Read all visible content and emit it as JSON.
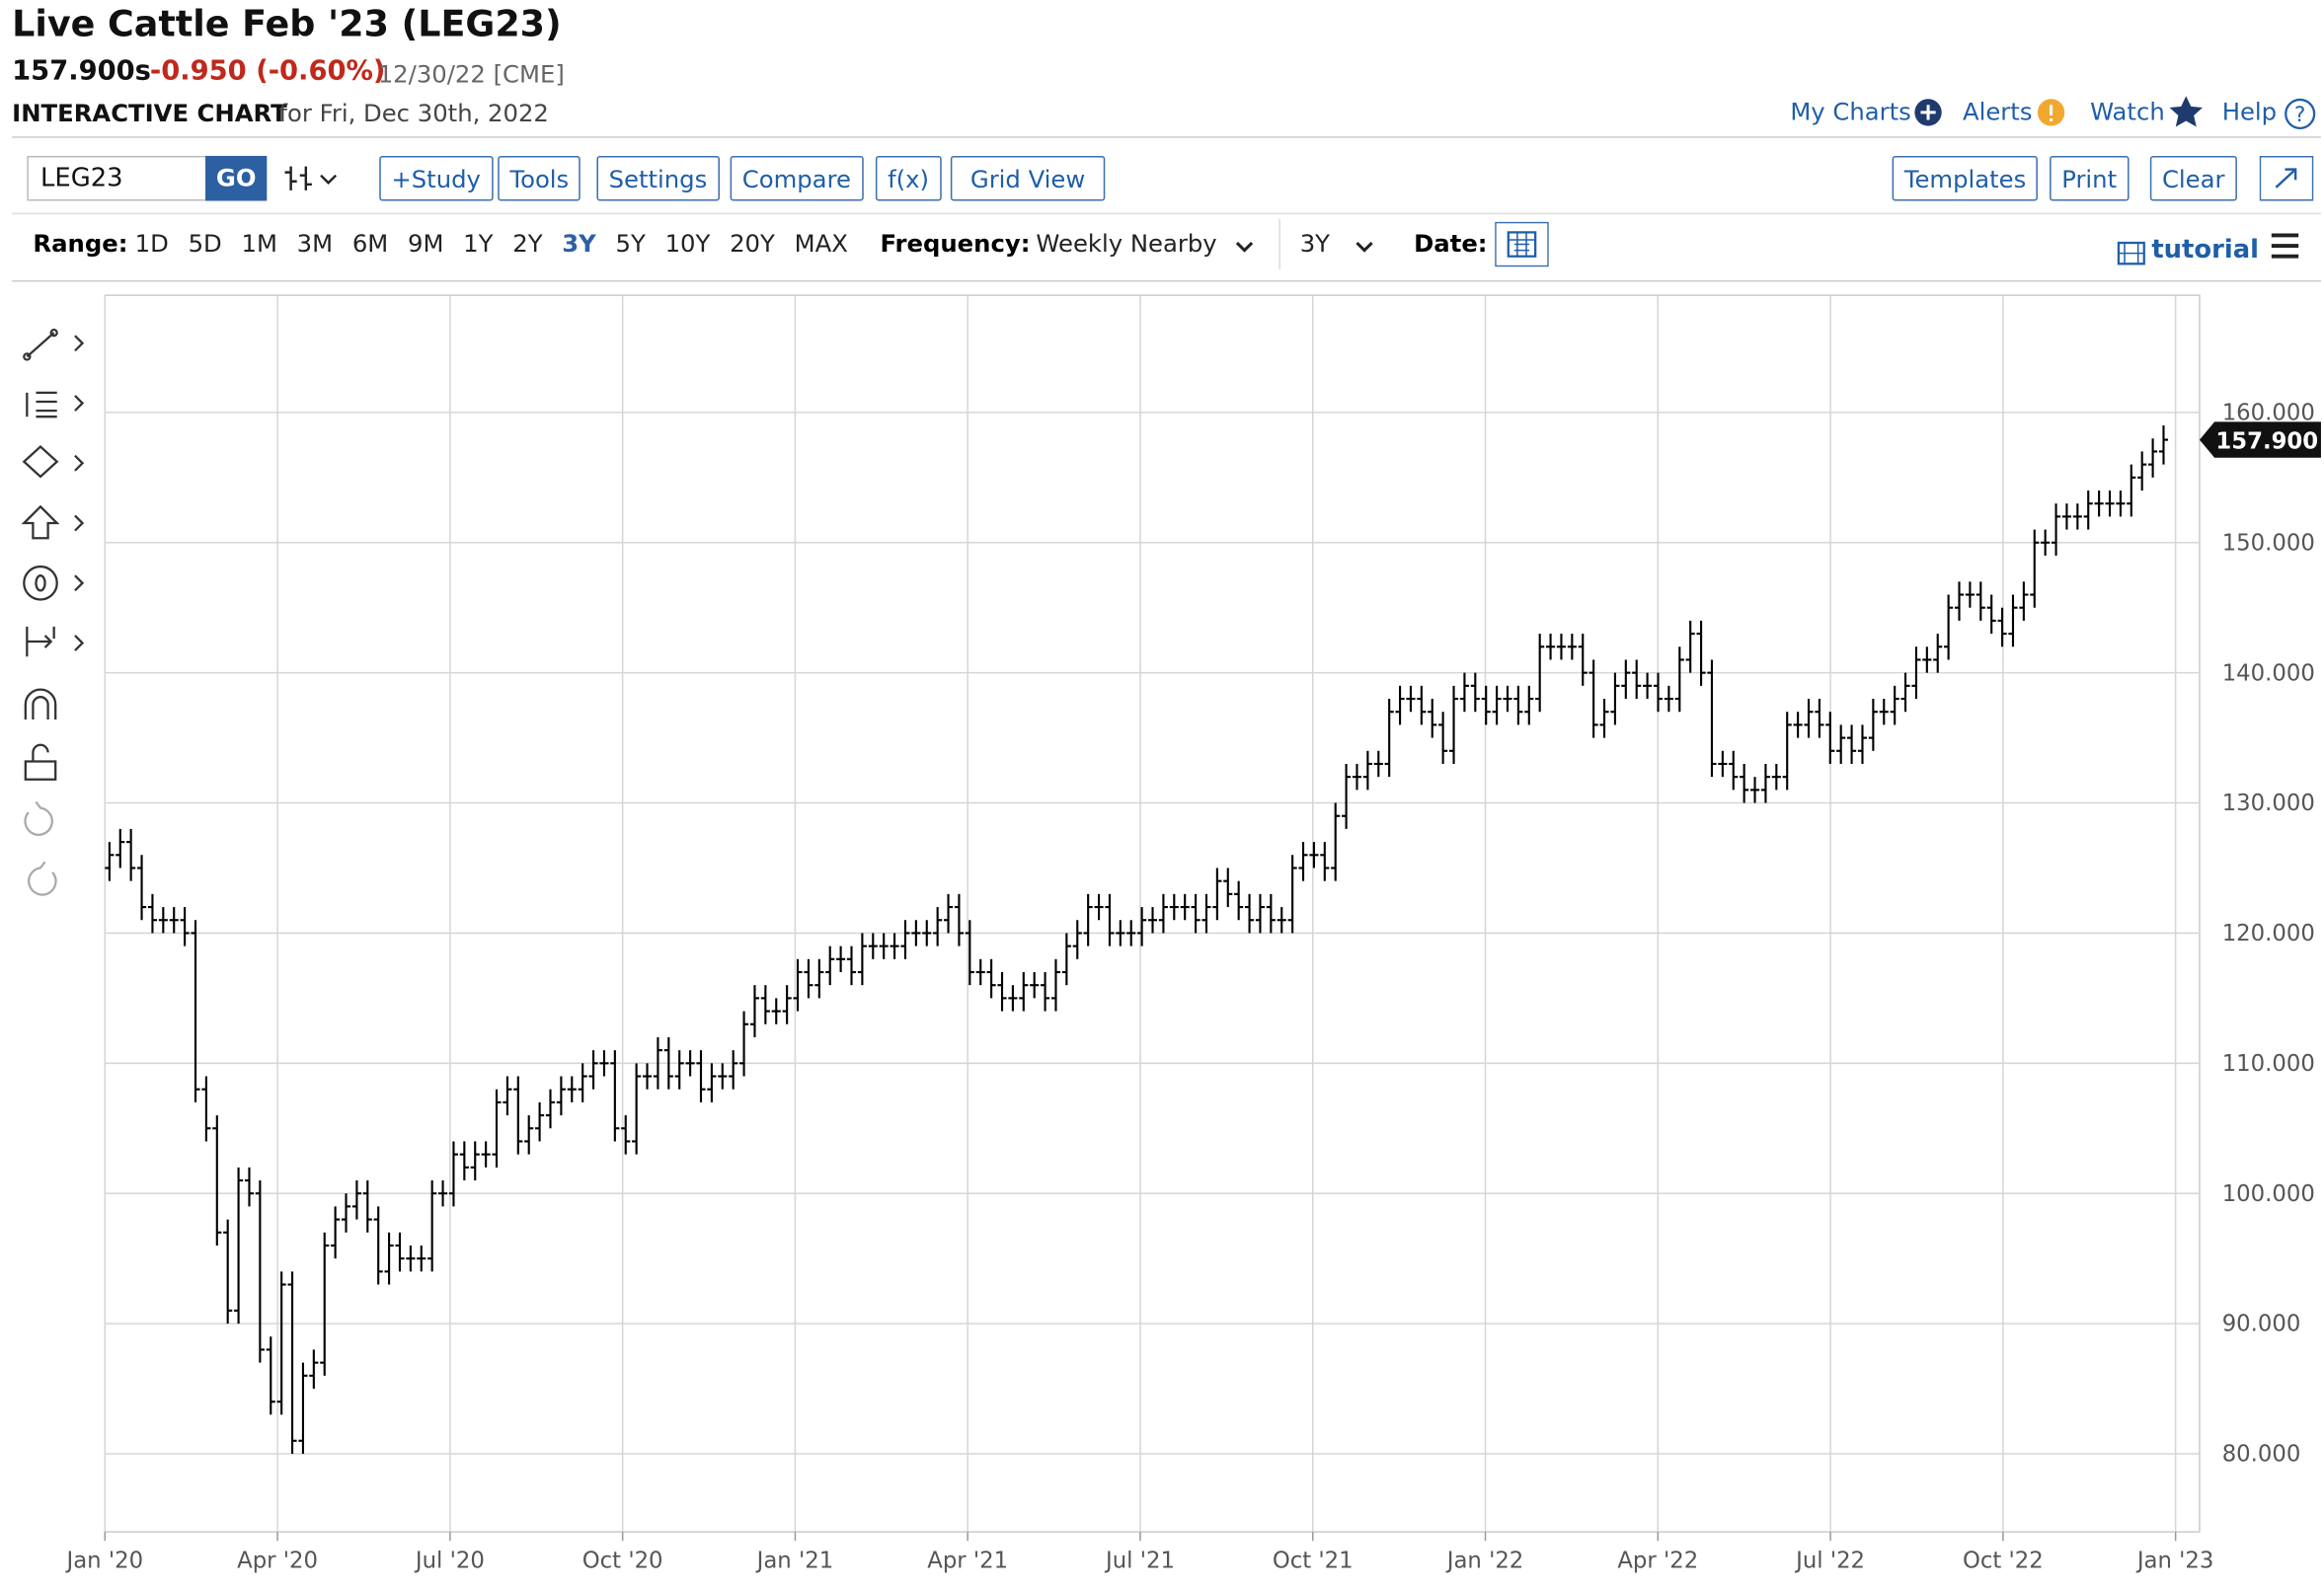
{
  "header": {
    "title": "Live Cattle Feb '23 (LEG23)",
    "price": "157.900s",
    "change": "-0.950 (-0.60%)",
    "date": "12/30/22 [CME]",
    "subtitle": "INTERACTIVE CHART",
    "subtitle_date": "for Fri, Dec 30th, 2022"
  },
  "top_links": [
    "My Charts",
    "Alerts",
    "Watch",
    "Help"
  ],
  "toolbar": {
    "symbol": "LEG23",
    "go": "GO",
    "buttons": [
      "+Study",
      "Tools",
      "Settings",
      "Compare",
      "f(x)",
      "Grid View"
    ],
    "right_buttons": [
      "Templates",
      "Print",
      "Clear"
    ]
  },
  "range_bar": {
    "label": "Range:",
    "options": [
      "1D",
      "5D",
      "1M",
      "3M",
      "6M",
      "9M",
      "1Y",
      "2Y",
      "3Y",
      "5Y",
      "10Y",
      "20Y",
      "MAX"
    ],
    "active": "3Y",
    "frequency_label": "Frequency:",
    "frequency": "Weekly Nearby",
    "period": "3Y",
    "date_label": "Date:",
    "tutorial": "tutorial"
  },
  "chart_data": {
    "type": "ohlc",
    "color": "#000000",
    "grid": true,
    "xticks": [
      "Jan '20",
      "Apr '20",
      "Jul '20",
      "Oct '20",
      "Jan '21",
      "Apr '21",
      "Jul '21",
      "Oct '21",
      "Jan '22",
      "Apr '22",
      "Jul '22",
      "Oct '22",
      "Jan '23"
    ],
    "ylim": [
      74,
      169
    ],
    "yticks": [
      {
        "value": 80,
        "label": "80.000"
      },
      {
        "value": 90,
        "label": "90.000"
      },
      {
        "value": 100,
        "label": "100.000"
      },
      {
        "value": 110,
        "label": "110.000"
      },
      {
        "value": 120,
        "label": "120.000"
      },
      {
        "value": 130,
        "label": "130.000"
      },
      {
        "value": 140,
        "label": "140.000"
      },
      {
        "value": 150,
        "label": "150.000"
      },
      {
        "value": 160,
        "label": "160.000"
      }
    ],
    "last_label": "157.900",
    "open": [
      125,
      126,
      127,
      125,
      122,
      121,
      121,
      121,
      120,
      108,
      105,
      97,
      91,
      101,
      100,
      88,
      84,
      93,
      81,
      86,
      87,
      96,
      98,
      99,
      100,
      98,
      94,
      96,
      95,
      95,
      95,
      100,
      100,
      103,
      102,
      103,
      103,
      107,
      108,
      104,
      105,
      106,
      107,
      108,
      108,
      109,
      110,
      110,
      105,
      104,
      109,
      109,
      111,
      109,
      110,
      110,
      108,
      109,
      109,
      110,
      113,
      115,
      114,
      114,
      115,
      117,
      116,
      117,
      118,
      118,
      117,
      119,
      119,
      119,
      119,
      120,
      120,
      120,
      121,
      122,
      120,
      117,
      117,
      116,
      115,
      115,
      116,
      116,
      115,
      117,
      119,
      120,
      122,
      122,
      120,
      120,
      120,
      121,
      121,
      122,
      122,
      122,
      121,
      122,
      124,
      123,
      122,
      121,
      122,
      121,
      121,
      125,
      126,
      126,
      125,
      129,
      132,
      132,
      133,
      133,
      137,
      138,
      138,
      137,
      136,
      134,
      138,
      139,
      138,
      137,
      138,
      138,
      137,
      138,
      142,
      142,
      142,
      142,
      140,
      136,
      137,
      139,
      140,
      139,
      139,
      138,
      138,
      141,
      143,
      140,
      133,
      133,
      132,
      131,
      131,
      132,
      132,
      136,
      136,
      137,
      136,
      134,
      135,
      134,
      135,
      137,
      137,
      138,
      139,
      141,
      141,
      142,
      145,
      146,
      146,
      145,
      144,
      143,
      145,
      146,
      150,
      150,
      152,
      152,
      152,
      153,
      153,
      153,
      153,
      155,
      156,
      157
    ],
    "high": [
      127,
      128,
      128,
      126,
      123,
      122,
      122,
      122,
      121,
      109,
      106,
      98,
      102,
      102,
      101,
      89,
      94,
      94,
      87,
      88,
      97,
      99,
      100,
      101,
      101,
      99,
      97,
      97,
      96,
      96,
      101,
      101,
      104,
      104,
      104,
      104,
      108,
      109,
      109,
      106,
      107,
      108,
      109,
      109,
      110,
      111,
      111,
      111,
      106,
      110,
      110,
      112,
      112,
      111,
      111,
      111,
      110,
      110,
      111,
      114,
      116,
      116,
      115,
      116,
      118,
      118,
      118,
      119,
      119,
      119,
      120,
      120,
      120,
      120,
      121,
      121,
      121,
      122,
      123,
      123,
      121,
      118,
      118,
      117,
      116,
      117,
      117,
      117,
      118,
      120,
      121,
      123,
      123,
      123,
      121,
      121,
      122,
      122,
      123,
      123,
      123,
      123,
      123,
      125,
      125,
      124,
      123,
      123,
      123,
      122,
      126,
      127,
      127,
      127,
      130,
      133,
      133,
      134,
      134,
      138,
      139,
      139,
      139,
      138,
      137,
      139,
      140,
      140,
      139,
      139,
      139,
      139,
      139,
      143,
      143,
      143,
      143,
      143,
      141,
      138,
      140,
      141,
      141,
      140,
      140,
      139,
      142,
      144,
      144,
      141,
      134,
      134,
      133,
      132,
      133,
      133,
      137,
      137,
      138,
      138,
      137,
      136,
      136,
      136,
      138,
      138,
      139,
      140,
      142,
      142,
      143,
      146,
      147,
      147,
      147,
      146,
      145,
      146,
      147,
      151,
      151,
      153,
      153,
      153,
      154,
      154,
      154,
      154,
      156,
      157,
      158,
      159
    ],
    "low": [
      124,
      125,
      124,
      121,
      120,
      120,
      120,
      119,
      107,
      104,
      96,
      90,
      90,
      99,
      87,
      83,
      83,
      80,
      80,
      85,
      86,
      95,
      97,
      98,
      97,
      93,
      93,
      94,
      94,
      94,
      94,
      99,
      99,
      101,
      101,
      102,
      102,
      106,
      103,
      103,
      104,
      105,
      106,
      107,
      107,
      108,
      109,
      104,
      103,
      103,
      108,
      108,
      108,
      108,
      109,
      107,
      107,
      108,
      108,
      109,
      112,
      113,
      113,
      113,
      114,
      115,
      115,
      116,
      117,
      116,
      116,
      118,
      118,
      118,
      118,
      119,
      119,
      119,
      120,
      119,
      116,
      116,
      115,
      114,
      114,
      114,
      115,
      114,
      114,
      116,
      118,
      119,
      121,
      119,
      119,
      119,
      119,
      120,
      120,
      121,
      121,
      120,
      120,
      121,
      122,
      121,
      120,
      120,
      120,
      120,
      120,
      124,
      125,
      124,
      124,
      128,
      131,
      131,
      132,
      132,
      136,
      137,
      136,
      135,
      133,
      133,
      137,
      137,
      136,
      136,
      137,
      136,
      136,
      137,
      141,
      141,
      141,
      139,
      135,
      135,
      136,
      138,
      138,
      138,
      137,
      137,
      137,
      140,
      139,
      132,
      132,
      131,
      130,
      130,
      130,
      131,
      131,
      135,
      135,
      135,
      133,
      133,
      133,
      133,
      134,
      136,
      136,
      137,
      138,
      140,
      140,
      141,
      144,
      145,
      144,
      143,
      142,
      142,
      144,
      145,
      149,
      149,
      151,
      151,
      151,
      152,
      152,
      152,
      152,
      154,
      155,
      156
    ],
    "close": [
      126,
      127,
      125,
      122,
      121,
      121,
      121,
      120,
      108,
      105,
      97,
      91,
      101,
      100,
      88,
      84,
      93,
      81,
      86,
      87,
      96,
      98,
      99,
      100,
      98,
      94,
      96,
      95,
      95,
      95,
      100,
      100,
      103,
      102,
      103,
      103,
      107,
      108,
      104,
      105,
      106,
      107,
      108,
      108,
      109,
      110,
      110,
      105,
      104,
      109,
      109,
      111,
      109,
      110,
      110,
      108,
      109,
      109,
      110,
      113,
      115,
      114,
      114,
      115,
      117,
      116,
      117,
      118,
      118,
      117,
      119,
      119,
      119,
      119,
      120,
      120,
      120,
      121,
      122,
      120,
      117,
      117,
      116,
      115,
      115,
      116,
      116,
      115,
      117,
      119,
      120,
      122,
      122,
      120,
      120,
      120,
      121,
      121,
      122,
      122,
      122,
      121,
      122,
      124,
      123,
      122,
      121,
      122,
      121,
      121,
      125,
      126,
      126,
      125,
      129,
      132,
      132,
      133,
      133,
      137,
      138,
      138,
      137,
      136,
      134,
      138,
      139,
      138,
      137,
      138,
      138,
      137,
      138,
      142,
      142,
      142,
      142,
      140,
      136,
      137,
      139,
      140,
      139,
      139,
      138,
      138,
      141,
      143,
      140,
      133,
      133,
      132,
      131,
      131,
      132,
      132,
      136,
      136,
      137,
      136,
      134,
      135,
      134,
      135,
      137,
      137,
      138,
      139,
      141,
      141,
      142,
      145,
      146,
      146,
      145,
      144,
      143,
      145,
      146,
      150,
      150,
      152,
      152,
      152,
      153,
      153,
      153,
      153,
      155,
      156,
      157,
      157.9
    ]
  }
}
